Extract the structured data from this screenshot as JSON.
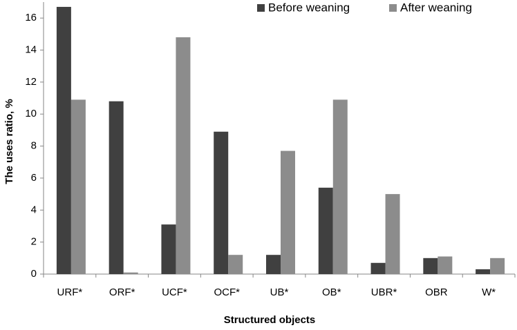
{
  "chart_data": {
    "type": "bar",
    "x_label": "Structured objects",
    "y_label": "The uses  ratio, %",
    "categories": [
      "URF*",
      "ORF*",
      "UCF*",
      "OCF*",
      "UB*",
      "OB*",
      "UBR*",
      "OBR",
      "W*"
    ],
    "series": [
      {
        "name": "Before weaning",
        "color": "#404040",
        "values": [
          16.7,
          10.8,
          3.1,
          8.9,
          1.2,
          5.4,
          0.7,
          1.0,
          0.3
        ]
      },
      {
        "name": "After weaning",
        "color": "#8c8c8c",
        "values": [
          10.9,
          0.1,
          14.8,
          1.2,
          7.7,
          10.9,
          5.0,
          1.1,
          1.0
        ]
      }
    ],
    "ylim": [
      0,
      17
    ],
    "yticks": [
      0,
      2,
      4,
      6,
      8,
      10,
      12,
      14,
      16
    ],
    "grid": false,
    "legend": "top-right"
  }
}
